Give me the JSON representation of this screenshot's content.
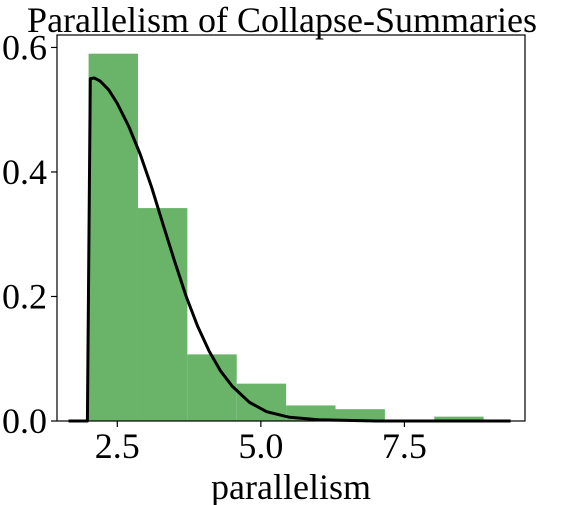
{
  "chart_data": {
    "type": "bar",
    "title": "Parallelism of Collapse-Summaries",
    "xlabel": "parallelism",
    "ylabel": "",
    "xlim": [
      1.45,
      9.6
    ],
    "ylim": [
      0,
      0.62
    ],
    "xticks": [
      2.5,
      5.0,
      7.5
    ],
    "xtick_labels": [
      "2.5",
      "5.0",
      "7.5"
    ],
    "yticks": [
      0.0,
      0.2,
      0.4,
      0.6
    ],
    "ytick_labels": [
      "0.0",
      "0.2",
      "0.4",
      "0.6"
    ],
    "grid": false,
    "histogram": {
      "color": "#6ab46a",
      "bins": [
        {
          "x0": 2.0,
          "x1": 2.86,
          "value": 0.59
        },
        {
          "x0": 2.86,
          "x1": 3.72,
          "value": 0.342
        },
        {
          "x0": 3.72,
          "x1": 4.58,
          "value": 0.107
        },
        {
          "x0": 4.58,
          "x1": 5.44,
          "value": 0.06
        },
        {
          "x0": 5.44,
          "x1": 6.3,
          "value": 0.025
        },
        {
          "x0": 6.3,
          "x1": 7.16,
          "value": 0.019
        },
        {
          "x0": 7.16,
          "x1": 8.02,
          "value": 0.0
        },
        {
          "x0": 8.02,
          "x1": 8.88,
          "value": 0.007
        }
      ]
    },
    "curve": {
      "color": "#000000",
      "points": [
        [
          1.65,
          0.0
        ],
        [
          1.98,
          0.0
        ],
        [
          2.03,
          0.55
        ],
        [
          2.1,
          0.551
        ],
        [
          2.2,
          0.546
        ],
        [
          2.35,
          0.532
        ],
        [
          2.5,
          0.51
        ],
        [
          2.7,
          0.473
        ],
        [
          2.9,
          0.428
        ],
        [
          3.1,
          0.375
        ],
        [
          3.3,
          0.315
        ],
        [
          3.5,
          0.256
        ],
        [
          3.7,
          0.2
        ],
        [
          3.9,
          0.152
        ],
        [
          4.1,
          0.112
        ],
        [
          4.3,
          0.08
        ],
        [
          4.5,
          0.056
        ],
        [
          4.8,
          0.03
        ],
        [
          5.1,
          0.015
        ],
        [
          5.5,
          0.006
        ],
        [
          6.0,
          0.002
        ],
        [
          7.0,
          0.0
        ],
        [
          9.35,
          0.0
        ]
      ]
    }
  }
}
